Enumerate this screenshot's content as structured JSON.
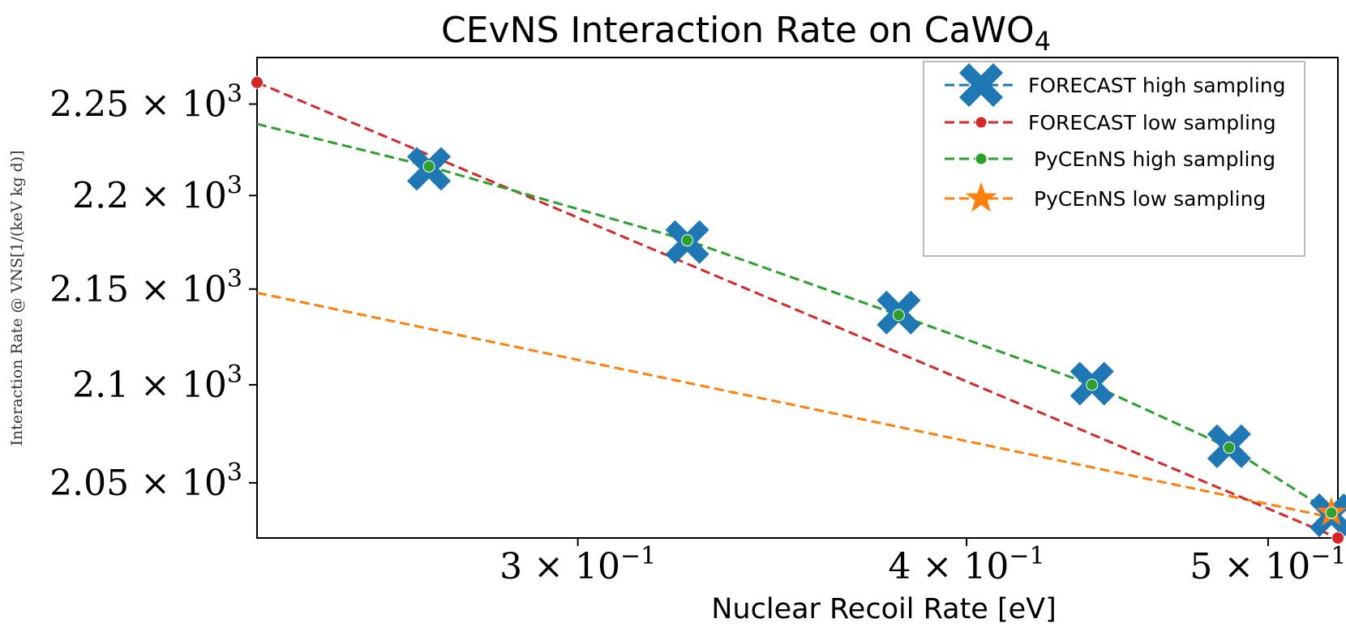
{
  "chart_data": {
    "type": "line",
    "title": "CEvNS Interaction Rate on CaWO",
    "title_subscript": "4",
    "xlabel": "Nuclear Recoil Rate [eV]",
    "ylabel": "Interaction Rate @ VNS[1/(keV kg d)]",
    "xscale": "log",
    "yscale": "log",
    "xlim": [
      0.2366,
      0.5265
    ],
    "ylim": [
      2022.4,
      2275.9
    ],
    "x_ticks": [
      {
        "value": 0.3,
        "label_base": "3 × 10",
        "label_exp": "−1"
      },
      {
        "value": 0.4,
        "label_base": "4 × 10",
        "label_exp": "−1"
      },
      {
        "value": 0.5,
        "label_base": "5 × 10",
        "label_exp": "−1"
      }
    ],
    "y_ticks": [
      {
        "value": 2050,
        "label_base": "2.05 × 10",
        "label_exp": "3"
      },
      {
        "value": 2100,
        "label_base": "2.1 × 10",
        "label_exp": "3"
      },
      {
        "value": 2150,
        "label_base": "2.15 × 10",
        "label_exp": "3"
      },
      {
        "value": 2200,
        "label_base": "2.2 × 10",
        "label_exp": "3"
      },
      {
        "value": 2250,
        "label_base": "2.25 × 10",
        "label_exp": "3"
      }
    ],
    "legend_position": "top-right",
    "series": [
      {
        "name": "FORECAST high sampling",
        "color": "#1f77b4",
        "marker": "X",
        "dashed_line": false,
        "x": [
          0.2687,
          0.3253,
          0.3804,
          0.4389,
          0.4858,
          0.524
        ],
        "y": [
          2214.5,
          2175.0,
          2137.6,
          2100.6,
          2068.5,
          2033.7
        ]
      },
      {
        "name": "FORECAST low sampling",
        "color": "#d62728",
        "marker": "circle",
        "dashed_line": true,
        "x": [
          0.2366,
          0.5265
        ],
        "y": [
          2262.0,
          2022.4
        ]
      },
      {
        "name": "PyCEnNS high sampling",
        "color": "#2ca02c",
        "marker": "circle",
        "dashed_line": true,
        "x": [
          0.2366,
          0.2687,
          0.3253,
          0.3804,
          0.4389,
          0.4858,
          0.524,
          0.5265
        ],
        "y": [
          2239.0,
          2215.8,
          2175.9,
          2136.3,
          2100.0,
          2067.8,
          2035.0,
          2030.0
        ]
      },
      {
        "name": "PyCEnNS low sampling",
        "color": "#ff7f0e",
        "marker": "star",
        "dashed_line": true,
        "line_x": [
          0.2366,
          0.5265
        ],
        "line_y": [
          2148.0,
          2032.0
        ],
        "x": [
          0.524
        ],
        "y": [
          2035.0
        ]
      }
    ]
  }
}
